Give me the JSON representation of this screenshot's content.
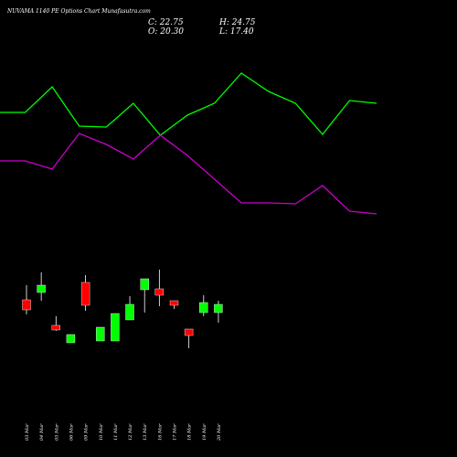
{
  "chart_data": {
    "type": "candlestick",
    "title": "NUVAMA 1140 PE Options Chart Munafasutra.com",
    "ohlc": {
      "close_label": "C: 22.75",
      "high_label": "H: 24.75",
      "open_label": "O: 20.30",
      "low_label": "L: 17.40"
    },
    "categories": [
      "03 Mar",
      "04 Mar",
      "05 Mar",
      "06 Mar",
      "09 Mar",
      "10 Mar",
      "11 Mar",
      "12 Mar",
      "13 Mar",
      "16 Mar",
      "17 Mar",
      "18 Mar",
      "19 Mar",
      "20 Mar"
    ],
    "candles": [
      {
        "open": 36.0,
        "high": 44.0,
        "low": 28.0,
        "close": 30.5,
        "color": "#ff0000"
      },
      {
        "open": 40.0,
        "high": 51.0,
        "low": 35.5,
        "close": 44.0,
        "color": "#00ff00"
      },
      {
        "open": 22.0,
        "high": 27.0,
        "low": 19.0,
        "close": 19.5,
        "color": "#ff0000"
      },
      {
        "open": 12.5,
        "high": 17.0,
        "low": 12.5,
        "close": 17.0,
        "color": "#00ff00"
      },
      {
        "open": 45.5,
        "high": 49.5,
        "low": 30.0,
        "close": 33.0,
        "color": "#ff0000"
      },
      {
        "open": 13.5,
        "high": 21.0,
        "low": 13.5,
        "close": 21.0,
        "color": "#00ff00"
      },
      {
        "open": 13.5,
        "high": 28.5,
        "low": 13.5,
        "close": 28.5,
        "color": "#00ff00"
      },
      {
        "open": 25.0,
        "high": 38.0,
        "low": 25.0,
        "close": 33.5,
        "color": "#00ff00"
      },
      {
        "open": 41.5,
        "high": 47.5,
        "low": 29.0,
        "close": 47.5,
        "color": "#00ff00"
      },
      {
        "open": 42.0,
        "high": 52.5,
        "low": 32.5,
        "close": 38.5,
        "color": "#ff0000"
      },
      {
        "open": 35.5,
        "high": 35.5,
        "low": 31.0,
        "close": 33.0,
        "color": "#ff0000"
      },
      {
        "open": 20.0,
        "high": 20.0,
        "low": 9.5,
        "close": 16.5,
        "color": "#ff0000"
      },
      {
        "open": 29.0,
        "high": 38.5,
        "low": 27.0,
        "close": 34.5,
        "color": "#00ff00"
      },
      {
        "open": 29.0,
        "high": 35.5,
        "low": 23.5,
        "close": 33.5,
        "color": "#00ff00"
      }
    ],
    "line_series": [
      {
        "color": "#00ff00",
        "values": [
          377,
          377,
          405,
          362,
          361,
          387,
          352,
          374,
          387,
          420,
          400,
          387,
          353,
          390,
          387
        ]
      },
      {
        "color": "#cc00cc",
        "values": [
          324,
          324,
          315,
          354,
          342,
          326,
          352,
          330,
          304,
          278,
          278,
          277,
          297,
          269,
          266
        ]
      }
    ]
  }
}
